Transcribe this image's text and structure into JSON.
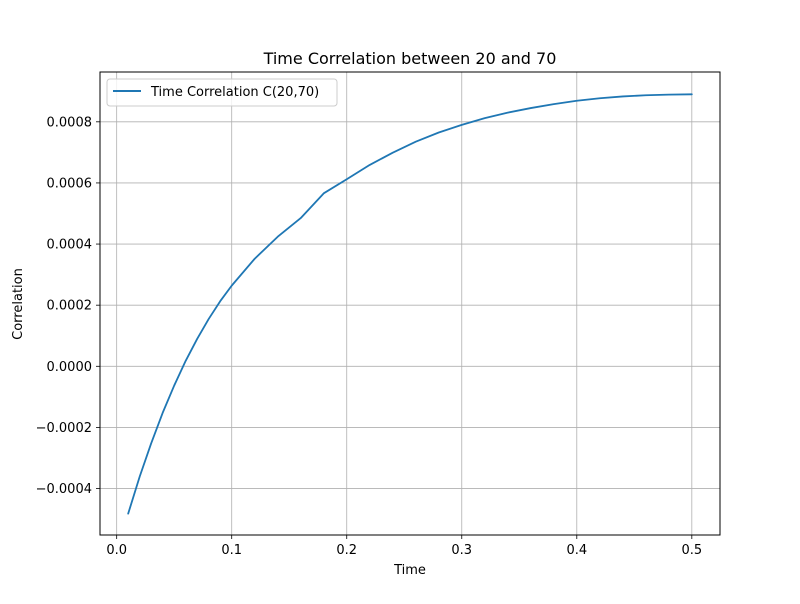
{
  "chart_data": {
    "type": "line",
    "title": "Time Correlation between 20 and 70",
    "xlabel": "Time",
    "ylabel": "Correlation",
    "xlim": [
      -0.0145,
      0.5245
    ],
    "ylim": [
      -0.000552,
      0.000963
    ],
    "xticks": [
      0.0,
      0.1,
      0.2,
      0.3,
      0.4,
      0.5
    ],
    "xtick_labels": [
      "0.0",
      "0.1",
      "0.2",
      "0.3",
      "0.4",
      "0.5"
    ],
    "yticks": [
      -0.0004,
      -0.0002,
      0.0,
      0.0002,
      0.0004,
      0.0006,
      0.0008
    ],
    "ytick_labels": [
      "−0.0004",
      "−0.0002",
      "0.0000",
      "0.0002",
      "0.0004",
      "0.0006",
      "0.0008"
    ],
    "grid": true,
    "legend": {
      "position": "top-left"
    },
    "colors": {
      "series": "#1f77b4",
      "grid": "#b0b0b0",
      "axes": "#000000"
    },
    "series": [
      {
        "name": "Time Correlation C(20,70)",
        "x": [
          0.01,
          0.02,
          0.03,
          0.04,
          0.05,
          0.06,
          0.07,
          0.08,
          0.09,
          0.1,
          0.12,
          0.14,
          0.16,
          0.18,
          0.2,
          0.22,
          0.24,
          0.26,
          0.28,
          0.3,
          0.32,
          0.34,
          0.36,
          0.38,
          0.4,
          0.42,
          0.44,
          0.46,
          0.48,
          0.5
        ],
        "y": [
          -0.000482,
          -0.000361,
          -0.000252,
          -0.000152,
          -6.3e-05,
          1.8e-05,
          9e-05,
          0.000155,
          0.000213,
          0.000264,
          0.000352,
          0.000424,
          0.000485,
          0.000566,
          0.000612,
          0.000659,
          0.000699,
          0.000735,
          0.000765,
          0.00079,
          0.000812,
          0.00083,
          0.000845,
          0.000858,
          0.000869,
          0.000877,
          0.000883,
          0.000887,
          0.000889,
          0.00089
        ]
      }
    ]
  }
}
